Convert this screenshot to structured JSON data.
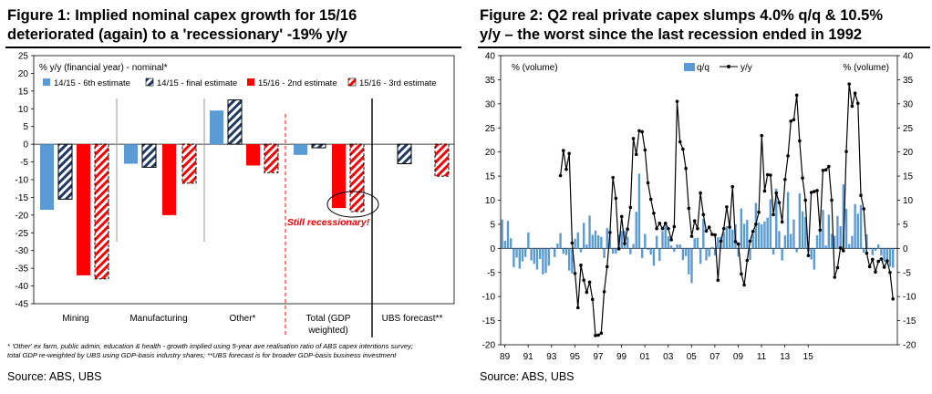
{
  "colors": {
    "light_blue": "#5b9bd5",
    "navy_hatch": "#1f3864",
    "red": "#ff0000",
    "line": "#000000"
  },
  "left": {
    "title_line1": "Figure 1: Implied nominal capex growth for 15/16",
    "title_line2": "deteriorated (again) to a 'recessionary' -19% y/y",
    "footnote_line1": "* 'Other' ex farm, public admin, education & health - growth implied using 5-year ave realisation ratio of ABS capex intentions survey;",
    "footnote_line2": "total GDP re-weighted by UBS using GDP-basis industry shares; **UBS forecast is for broader GDP-basis business investment",
    "source": "Source:  ABS, UBS"
  },
  "right": {
    "title_line1": "Figure 2: Q2 real private capex slumps 4.0% q/q & 10.5%",
    "title_line2": "y/y – the worst since the last recession ended in 1992",
    "source": "Source:  ABS, UBS"
  },
  "chart_data": [
    {
      "type": "bar",
      "title": "Figure 1: Implied nominal capex growth for 15/16 deteriorated (again) to a 'recessionary' -19% y/y",
      "ylabel": "% y/y (financial year) - nominal*",
      "ylim": [
        -45,
        25
      ],
      "yticks": [
        25,
        20,
        15,
        10,
        5,
        0,
        -5,
        -10,
        -15,
        -20,
        -25,
        -30,
        -35,
        -40,
        -45
      ],
      "categories": [
        "Mining",
        "Manufacturing",
        "Other*",
        "Total (GDP\nweighted)",
        "UBS forecast**"
      ],
      "series": [
        {
          "name": "14/15 - 6th estimate",
          "style": "solid-lightblue",
          "values": [
            -18.5,
            -5.5,
            9.5,
            -3,
            null
          ]
        },
        {
          "name": "14/15 - final estimate",
          "style": "hatch-navy",
          "values": [
            -15.5,
            -6.5,
            12.5,
            -1,
            -5.5
          ]
        },
        {
          "name": "15/16 - 2nd estimate",
          "style": "solid-red",
          "values": [
            -37,
            -20,
            -6,
            -18,
            null
          ]
        },
        {
          "name": "15/16 - 3rd estimate",
          "style": "hatch-red",
          "values": [
            -38,
            -11,
            -8,
            -19,
            -9
          ]
        }
      ],
      "annotation": "Still recessionary!"
    },
    {
      "type": "bar+line",
      "title": "Figure 2: Q2 real private capex slumps 4.0% q/q & 10.5% y/y – the worst since the last recession ended in 1992",
      "ylabel_left": "% (volume)",
      "ylabel_right": "% (volume)",
      "ylim": [
        -20,
        40
      ],
      "yticks": [
        40,
        35,
        30,
        25,
        20,
        15,
        10,
        5,
        0,
        -5,
        -10,
        -15,
        -20
      ],
      "x_start": "1989Q1",
      "xtick_labels": [
        "89",
        "91",
        "93",
        "95",
        "97",
        "99",
        "01",
        "03",
        "05",
        "07",
        "09",
        "11",
        "13",
        "15"
      ],
      "series": [
        {
          "name": "q/q",
          "type": "bar",
          "values": [
            6.0,
            1.6,
            5.7,
            2.1,
            -3.9,
            -1.9,
            -4.2,
            -2.7,
            -1.8,
            3.3,
            -2.5,
            -3.2,
            -4.4,
            -2.2,
            -5.4,
            -5.1,
            -3.6,
            0.2,
            -1.8,
            1.0,
            3.2,
            -1.1,
            -1.4,
            -4.6,
            -5.2,
            2.0,
            3.3,
            -0.8,
            5.3,
            0.8,
            6.8,
            2.8,
            3.7,
            2.7,
            2.4,
            -2.0,
            4.2,
            2.9,
            -1.1,
            -1.1,
            2.8,
            3.6,
            3.7,
            2.4,
            -1.2,
            0.9,
            7.6,
            15.5,
            -2.0,
            3.0,
            -0.3,
            -1.3,
            -3.6,
            2.6,
            -2.6,
            3.6,
            4.7,
            2.5,
            0.6,
            -0.7,
            0.8,
            0.8,
            -2.4,
            -1.6,
            -5.4,
            -7.2,
            2.1,
            2.2,
            -3.2,
            6.1,
            -2.5,
            -1.7,
            0.3,
            -1.5,
            2.3,
            2.4,
            3.4,
            4.6,
            5.1,
            3.9,
            5.0,
            -1.7,
            8.3,
            5.1,
            5.9,
            -2.4,
            3.0,
            9.4,
            5.4,
            5.0,
            5.6,
            6.4,
            10.2,
            -1.3,
            12.4,
            3.6,
            -2.5,
            2.7,
            11.7,
            3.0,
            6.0,
            -0.8,
            11.4,
            7.7,
            6.5,
            -0.6,
            -2.3,
            -4.4,
            2.7,
            3.5,
            8.0,
            0.6,
            7.0,
            3.0,
            2.6,
            6.7,
            4.6,
            13.3,
            8.2,
            0.9,
            2.6,
            9.2,
            7.2,
            9.0,
            -0.9,
            2.9,
            -0.2,
            -1.4,
            -0.5,
            0.8,
            -1.5,
            -2.8,
            -2.7,
            -3.8,
            -4.0
          ]
        },
        {
          "name": "y/y",
          "type": "line-markers",
          "values": [
            15.1,
            20.3,
            16.4,
            19.7,
            1.1,
            -5.2,
            -12.3,
            -3.5,
            -6.6,
            -9.1,
            -7.0,
            -10.6,
            -18.1,
            -18.0,
            -17.6,
            -9.0,
            -3.8,
            3.3,
            14.7,
            10.4,
            -0.1,
            6.6,
            1.0,
            4.0,
            8.5,
            22.8,
            19.5,
            24.4,
            24.2,
            20.4,
            13.6,
            10.2,
            7.3,
            4.1,
            5.2,
            4.1,
            5.2,
            4.1,
            1.8,
            4.5,
            30.5,
            22.1,
            20.6,
            16.6,
            8.3,
            2.5,
            5.7,
            4.1,
            11.5,
            7.0,
            3.6,
            4.4,
            2.9,
            2.8,
            -6.6,
            1.5,
            4.1,
            8.6,
            4.4,
            12.8,
            1.4,
            0.9,
            -5.3,
            -7.6,
            -2.5,
            1.5,
            3.5,
            5.0,
            7.5,
            23.4,
            11.9,
            15.3,
            15.2,
            7.0,
            11.5,
            9.5,
            5.5,
            14.3,
            19.2,
            26.4,
            26.7,
            31.8,
            22.3,
            14.6,
            10.0,
            -1.5,
            11.6,
            11.8,
            12.0,
            3.8,
            16.2,
            16.3,
            17.0,
            10.0,
            -6.0,
            -4.0,
            0.1,
            -0.5,
            20.1,
            34.1,
            29.5,
            32.2,
            30.1,
            11.0,
            8.2,
            -1.0,
            -3.8,
            -2.3,
            -4.9,
            -2.7,
            -2.2,
            -3.9,
            -2.6,
            -5.0,
            -10.5
          ]
        }
      ]
    }
  ]
}
